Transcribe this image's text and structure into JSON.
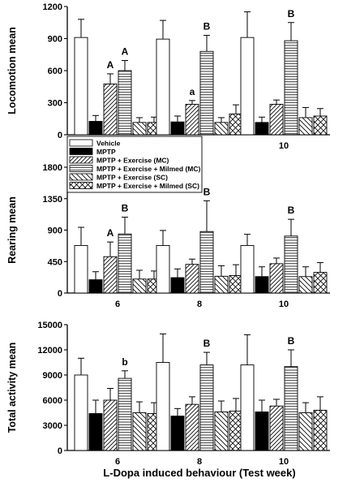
{
  "figure": {
    "xlabel": "L-Dopa induced behaviour (Test week)"
  },
  "legend": {
    "entries": [
      {
        "label": "Vehicle",
        "pattern": "white"
      },
      {
        "label": "MPTP",
        "pattern": "black"
      },
      {
        "label": "MPTP + Exercise (MC)",
        "pattern": "diag-down"
      },
      {
        "label": "MPTP + Exercise + Milmed (MC)",
        "pattern": "horizontal"
      },
      {
        "label": "MPTP + Exercise (SC)",
        "pattern": "diag-up"
      },
      {
        "label": "MPTP + Exercise + Milmed (SC)",
        "pattern": "cross"
      }
    ]
  },
  "chart_data": [
    {
      "type": "bar",
      "ylabel": "Locomotion mean",
      "ylim": [
        0,
        1200
      ],
      "yticks": [
        0,
        300,
        600,
        900,
        1200
      ],
      "categories": [
        "6",
        "8",
        "10"
      ],
      "series": [
        {
          "name": "Vehicle",
          "values": [
            910,
            895,
            910
          ],
          "errors": [
            170,
            175,
            240
          ]
        },
        {
          "name": "MPTP",
          "values": [
            125,
            120,
            115
          ],
          "errors": [
            55,
            55,
            50
          ]
        },
        {
          "name": "MPTP + Exercise (MC)",
          "values": [
            475,
            285,
            285
          ],
          "errors": [
            95,
            35,
            40
          ]
        },
        {
          "name": "MPTP + Exercise + Milmed (MC)",
          "values": [
            600,
            780,
            880
          ],
          "errors": [
            95,
            150,
            170
          ]
        },
        {
          "name": "MPTP + Exercise (SC)",
          "values": [
            115,
            115,
            160
          ],
          "errors": [
            45,
            45,
            95
          ]
        },
        {
          "name": "MPTP + Exercise + Milmed (SC)",
          "values": [
            115,
            195,
            175
          ],
          "errors": [
            50,
            85,
            70
          ]
        }
      ],
      "annotations": [
        {
          "text": "A",
          "category": "6",
          "series": "MPTP + Exercise (MC)"
        },
        {
          "text": "A",
          "category": "6",
          "series": "MPTP + Exercise + Milmed (MC)"
        },
        {
          "text": "a",
          "category": "8",
          "series": "MPTP + Exercise (MC)"
        },
        {
          "text": "B",
          "category": "8",
          "series": "MPTP + Exercise + Milmed (MC)"
        },
        {
          "text": "B",
          "category": "10",
          "series": "MPTP + Exercise + Milmed (MC)"
        }
      ]
    },
    {
      "type": "bar",
      "ylabel": "Rearing mean",
      "ylim": [
        0,
        1800
      ],
      "yticks": [
        0,
        450,
        900,
        1350,
        1800
      ],
      "categories": [
        "6",
        "8",
        "10"
      ],
      "series": [
        {
          "name": "Vehicle",
          "values": [
            680,
            680,
            680
          ],
          "errors": [
            260,
            215,
            160
          ]
        },
        {
          "name": "MPTP",
          "values": [
            190,
            220,
            235
          ],
          "errors": [
            115,
            125,
            140
          ]
        },
        {
          "name": "MPTP + Exercise (MC)",
          "values": [
            520,
            410,
            420
          ],
          "errors": [
            210,
            75,
            80
          ]
        },
        {
          "name": "MPTP + Exercise + Milmed (MC)",
          "values": [
            845,
            880,
            815
          ],
          "errors": [
            240,
            440,
            240
          ]
        },
        {
          "name": "MPTP + Exercise (SC)",
          "values": [
            200,
            240,
            235
          ],
          "errors": [
            125,
            150,
            140
          ]
        },
        {
          "name": "MPTP + Exercise + Milmed (SC)",
          "values": [
            200,
            250,
            295
          ],
          "errors": [
            115,
            155,
            140
          ]
        }
      ],
      "annotations": [
        {
          "text": "A",
          "category": "6",
          "series": "MPTP + Exercise (MC)"
        },
        {
          "text": "B",
          "category": "6",
          "series": "MPTP + Exercise + Milmed (MC)"
        },
        {
          "text": "B",
          "category": "8",
          "series": "MPTP + Exercise + Milmed (MC)"
        },
        {
          "text": "B",
          "category": "10",
          "series": "MPTP + Exercise + Milmed (MC)"
        }
      ]
    },
    {
      "type": "bar",
      "ylabel": "Total activity mean",
      "ylim": [
        0,
        15000
      ],
      "yticks": [
        0,
        3000,
        6000,
        9000,
        12000,
        15000
      ],
      "categories": [
        "6",
        "8",
        "10"
      ],
      "series": [
        {
          "name": "Vehicle",
          "values": [
            9000,
            10500,
            10200
          ],
          "errors": [
            2000,
            3400,
            3600
          ]
        },
        {
          "name": "MPTP",
          "values": [
            4400,
            4100,
            4600
          ],
          "errors": [
            1600,
            900,
            1400
          ]
        },
        {
          "name": "MPTP + Exercise (MC)",
          "values": [
            6000,
            5500,
            5300
          ],
          "errors": [
            1400,
            900,
            800
          ]
        },
        {
          "name": "MPTP + Exercise + Milmed (MC)",
          "values": [
            8600,
            10200,
            10000
          ],
          "errors": [
            900,
            1500,
            2000
          ]
        },
        {
          "name": "MPTP + Exercise (SC)",
          "values": [
            4500,
            4600,
            4500
          ],
          "errors": [
            1300,
            1300,
            1200
          ]
        },
        {
          "name": "MPTP + Exercise + Milmed (SC)",
          "values": [
            4400,
            4700,
            4800
          ],
          "errors": [
            1300,
            1500,
            1600
          ]
        }
      ],
      "annotations": [
        {
          "text": "b",
          "category": "6",
          "series": "MPTP + Exercise + Milmed (MC)"
        },
        {
          "text": "B",
          "category": "8",
          "series": "MPTP + Exercise + Milmed (MC)"
        },
        {
          "text": "B",
          "category": "10",
          "series": "MPTP + Exercise + Milmed (MC)"
        }
      ]
    }
  ]
}
